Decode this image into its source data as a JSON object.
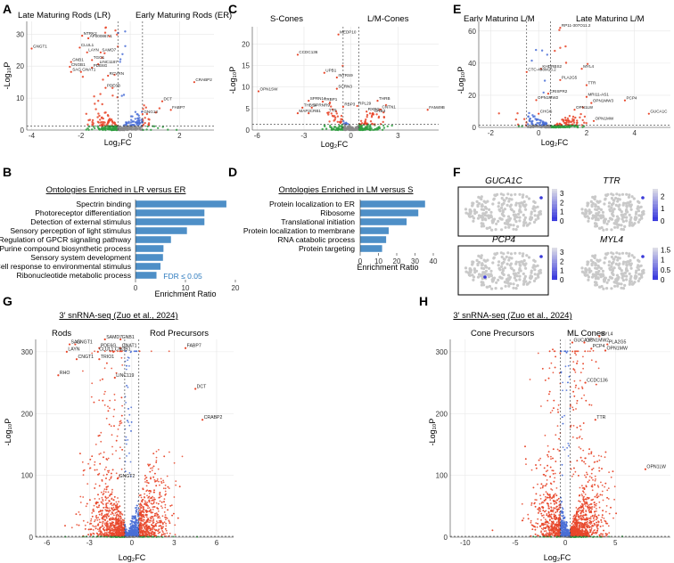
{
  "panel_letters": [
    "A",
    "B",
    "C",
    "D",
    "E",
    "F",
    "G",
    "H"
  ],
  "colors": {
    "sig": "#e8462a",
    "fc": "#2e9d3f",
    "p": "#4a6fd6",
    "ns": "#8a8a8a",
    "bar": "#4e8fc7",
    "grid": "#e6e6e6"
  },
  "chart_data": [
    {
      "id": "A",
      "type": "scatter",
      "subtype": "volcano",
      "group_left": "Late Maturing Rods (LR)",
      "group_right": "Early Maturing Rods (ER)",
      "xlabel": "Log₂FC",
      "ylabel": "-Log₁₀P",
      "xlim": [
        -4.2,
        3.4
      ],
      "ylim": [
        0,
        34
      ],
      "xticks": [
        -4,
        -2,
        0,
        2
      ],
      "yticks": [
        0,
        10,
        20,
        30
      ],
      "fc_threshold": [
        -0.5,
        0.5
      ],
      "p_threshold": 1.3,
      "labels": [
        {
          "t": "NTRK2",
          "x": -1.95,
          "y": 29.5
        },
        {
          "t": "AP000867.1",
          "x": -1.7,
          "y": 28.7
        },
        {
          "t": "GNGT1",
          "x": -4.0,
          "y": 25.5
        },
        {
          "t": "CLUL1",
          "x": -2.05,
          "y": 25.8
        },
        {
          "t": "LAYN",
          "x": -1.75,
          "y": 24.3
        },
        {
          "t": "SAMD7",
          "x": -1.2,
          "y": 24.3
        },
        {
          "t": "GNB1",
          "x": -2.4,
          "y": 21.3
        },
        {
          "t": "TGO1",
          "x": -1.55,
          "y": 21.9
        },
        {
          "t": "LINC1187",
          "x": -1.3,
          "y": 20.6
        },
        {
          "t": "CNGB1",
          "x": -2.45,
          "y": 19.8
        },
        {
          "t": "PDE6G",
          "x": -1.55,
          "y": 19.5
        },
        {
          "t": "SAG",
          "x": -2.4,
          "y": 18.2
        },
        {
          "t": "GNAT1",
          "x": -2.0,
          "y": 18.2
        },
        {
          "t": "RCVRN",
          "x": -0.9,
          "y": 17.0
        },
        {
          "t": "PDE6B",
          "x": -1.0,
          "y": 13.2
        },
        {
          "t": "CRABP2",
          "x": 2.6,
          "y": 15.0
        },
        {
          "t": "DCT",
          "x": 1.3,
          "y": 9.0
        },
        {
          "t": "FABP7",
          "x": 1.65,
          "y": 6.3
        },
        {
          "t": "GNG13",
          "x": 0.5,
          "y": 5.0
        }
      ]
    },
    {
      "id": "B",
      "type": "bar",
      "orientation": "horizontal",
      "title": "Ontologies Enriched in LR versus ER",
      "categories": [
        "Spectrin binding",
        "Photoreceptor differentiation",
        "Detection of external stimulus",
        "Sensory perception of light stimulus",
        "Regulation of GPCR signaling pathway",
        "Purine compound biosynthetic process",
        "Sensory system development",
        "Cell response to environmental stimulus",
        "Ribonucleotide metabolic process"
      ],
      "values": [
        18.2,
        13.8,
        13.8,
        10.3,
        7.1,
        5.6,
        5.5,
        5.0,
        4.2
      ],
      "xlabel": "Enrichment Ratio",
      "xlim": [
        0,
        20
      ],
      "xticks": [
        0,
        10,
        20
      ],
      "annotation": "FDR ≤ 0.05"
    },
    {
      "id": "C",
      "type": "scatter",
      "subtype": "volcano",
      "group_left": "S-Cones",
      "group_right": "L/M-Cones",
      "xlabel": "Log₂FC",
      "ylabel": "-Log₁₀P",
      "xlim": [
        -6.3,
        5.6
      ],
      "ylim": [
        0,
        24
      ],
      "xticks": [
        -6,
        -3,
        0,
        3
      ],
      "yticks": [
        0,
        5,
        10,
        15,
        20
      ],
      "fc_threshold": [
        -0.5,
        0.5
      ],
      "p_threshold": 1.3,
      "labels": [
        {
          "t": "MEDP10",
          "x": -0.8,
          "y": 22.2
        },
        {
          "t": "CCDC136",
          "x": -3.4,
          "y": 17.5
        },
        {
          "t": "UPB1",
          "x": -1.7,
          "y": 13.3
        },
        {
          "t": "INTRS9",
          "x": -0.9,
          "y": 12.2
        },
        {
          "t": "OPN1SW",
          "x": -5.9,
          "y": 9.0
        },
        {
          "t": "SCRN3",
          "x": -0.9,
          "y": 9.6
        },
        {
          "t": "SPRN14",
          "x": -2.7,
          "y": 6.8
        },
        {
          "t": "THRB",
          "x": 1.7,
          "y": 6.8
        },
        {
          "t": "TRBP1",
          "x": -1.8,
          "y": 6.6
        },
        {
          "t": "THBS4",
          "x": -3.1,
          "y": 5.2
        },
        {
          "t": "SPRNR9",
          "x": -2.5,
          "y": 5.2
        },
        {
          "t": "RBP3",
          "x": -0.5,
          "y": 5.4
        },
        {
          "t": "RPL29",
          "x": 0.4,
          "y": 5.6
        },
        {
          "t": "CNTN1",
          "x": 1.9,
          "y": 4.8
        },
        {
          "t": "FAM49B",
          "x": 4.9,
          "y": 4.7
        },
        {
          "t": "MAP2",
          "x": -3.4,
          "y": 3.9
        },
        {
          "t": "CRB1",
          "x": -2.7,
          "y": 3.9
        },
        {
          "t": "TTR",
          "x": -1.5,
          "y": 4.0
        },
        {
          "t": "RXRG",
          "x": 1.0,
          "y": 4.3
        },
        {
          "t": "GNB3",
          "x": 1.4,
          "y": 3.9
        }
      ]
    },
    {
      "id": "D",
      "type": "bar",
      "orientation": "horizontal",
      "title": "Ontologies Enriched in LM versus S",
      "categories": [
        "Protein localization to ER",
        "Ribosome",
        "Translational initiation",
        "Protein localization to membrane",
        "RNA catabolic process",
        "Protein targeting"
      ],
      "values": [
        35.5,
        31.8,
        25.4,
        15.6,
        14.2,
        12.0
      ],
      "xlabel": "Enrichment Ratio",
      "xlim": [
        0,
        40
      ],
      "xticks": [
        0,
        10,
        20,
        30,
        40
      ]
    },
    {
      "id": "E",
      "type": "scatter",
      "subtype": "volcano",
      "group_left": "Early Maturing L/M",
      "group_right": "Late Maturing L/M",
      "xlabel": "Log₂FC",
      "ylabel": "-Log₁₀P",
      "xlim": [
        -2.5,
        5.5
      ],
      "ylim": [
        0,
        66
      ],
      "xticks": [
        -2,
        0,
        2,
        4
      ],
      "yticks": [
        0,
        20,
        40,
        60
      ],
      "fc_threshold": [
        -0.5,
        0.5
      ],
      "p_threshold": 1.3,
      "labels": [
        {
          "t": "RP11-307O11.2",
          "x": 0.9,
          "y": 62.0
        },
        {
          "t": "KHDRBS2",
          "x": 0.1,
          "y": 36.5
        },
        {
          "t": "MYL4",
          "x": 1.8,
          "y": 36.5
        },
        {
          "t": "CTC-498M16.2",
          "x": -0.5,
          "y": 34.5
        },
        {
          "t": "PLA2G5",
          "x": 0.9,
          "y": 29.5
        },
        {
          "t": "TTR",
          "x": 2.0,
          "y": 26.3
        },
        {
          "t": "CRISPR2",
          "x": 0.4,
          "y": 21.0
        },
        {
          "t": "MRI11-AS1",
          "x": 2.0,
          "y": 19.0
        },
        {
          "t": "OPN1MW2",
          "x": -0.1,
          "y": 17.0
        },
        {
          "t": "OPN1MW3",
          "x": 2.2,
          "y": 15.2
        },
        {
          "t": "PCP4",
          "x": 3.6,
          "y": 16.8
        },
        {
          "t": "OPN1LW",
          "x": 1.5,
          "y": 11.0
        },
        {
          "t": "GUCA1C",
          "x": 4.6,
          "y": 8.5
        },
        {
          "t": "CHGG",
          "x": 0.0,
          "y": 8.5
        },
        {
          "t": "OPN1MW",
          "x": 2.3,
          "y": 4.0
        }
      ]
    },
    {
      "id": "F",
      "type": "scatter",
      "subtype": "tsne",
      "panels": [
        {
          "gene": "GUCA1C",
          "legend": [
            "3",
            "2",
            "1",
            "0"
          ],
          "lmax": 3.5,
          "highlight": true
        },
        {
          "gene": "TTR",
          "legend": [
            "2",
            "1",
            "0"
          ],
          "lmax": 2.6,
          "highlight": false
        },
        {
          "gene": "PCP4",
          "legend": [
            "3",
            "2",
            "1",
            "0"
          ],
          "lmax": 3.5,
          "highlight": true
        },
        {
          "gene": "MYL4",
          "legend": [
            "1.5",
            "1",
            "0.5",
            "0"
          ],
          "lmax": 1.6,
          "highlight": false
        }
      ]
    },
    {
      "id": "G",
      "type": "scatter",
      "subtype": "volcano",
      "title": "3′ snRNA-seq (Zuo et al., 2024)",
      "group_left": "Rods",
      "group_right": "Rod Precursors",
      "xlabel": "Log₂FC",
      "ylabel": "-Log₁₀P",
      "xlim": [
        -6.8,
        7.2
      ],
      "ylim": [
        0,
        320
      ],
      "xticks": [
        -6,
        -3,
        0,
        3,
        6
      ],
      "yticks": [
        0,
        100,
        200,
        300
      ],
      "fc_threshold": [
        -0.5,
        0.5
      ],
      "p_threshold": 1.3,
      "labels": [
        {
          "t": "SAMD7",
          "x": -1.9,
          "y": 320
        },
        {
          "t": "GNB1",
          "x": -0.8,
          "y": 320
        },
        {
          "t": "SAG",
          "x": -4.4,
          "y": 312
        },
        {
          "t": "GNGT1",
          "x": -4.0,
          "y": 312
        },
        {
          "t": "PDE6G",
          "x": -2.3,
          "y": 306
        },
        {
          "t": "GNAT1",
          "x": -0.8,
          "y": 306
        },
        {
          "t": "LAYN",
          "x": -4.6,
          "y": 300
        },
        {
          "t": "CLUL1",
          "x": -2.4,
          "y": 300
        },
        {
          "t": "CNGB1",
          "x": -1.3,
          "y": 300
        },
        {
          "t": "FABP7",
          "x": 3.8,
          "y": 306
        },
        {
          "t": "CNGT1",
          "x": -3.9,
          "y": 288
        },
        {
          "t": "TRIO1",
          "x": -2.3,
          "y": 288
        },
        {
          "t": "RHO",
          "x": -5.2,
          "y": 262
        },
        {
          "t": "LINC119",
          "x": -1.2,
          "y": 258
        },
        {
          "t": "DCT",
          "x": 4.5,
          "y": 240
        },
        {
          "t": "CRABP2",
          "x": 5.0,
          "y": 190
        },
        {
          "t": "GNGT2",
          "x": -1.0,
          "y": 95
        }
      ]
    },
    {
      "id": "H",
      "type": "scatter",
      "subtype": "volcano",
      "title": "3′ snRNA-seq (Zuo et al., 2024)",
      "group_left": "Cone Precursors",
      "group_right": "ML Cones",
      "xlabel": "Log₂FC",
      "ylabel": "-Log₁₀P",
      "xlim": [
        -11.5,
        10.5
      ],
      "ylim": [
        0,
        320
      ],
      "xticks": [
        -10,
        -5,
        0,
        5
      ],
      "yticks": [
        0,
        100,
        200,
        300
      ],
      "fc_threshold": [
        -0.5,
        0.5
      ],
      "p_threshold": 1.3,
      "labels": [
        {
          "t": "MYL4",
          "x": 3.4,
          "y": 325
        },
        {
          "t": "GUCA1C",
          "x": 0.7,
          "y": 315
        },
        {
          "t": "OPN1MW2",
          "x": 1.9,
          "y": 315
        },
        {
          "t": "PLA2G5",
          "x": 4.2,
          "y": 312
        },
        {
          "t": "PCP4",
          "x": 2.6,
          "y": 305
        },
        {
          "t": "OPN1MW",
          "x": 4.0,
          "y": 302
        },
        {
          "t": "CCDC136",
          "x": 2.0,
          "y": 250
        },
        {
          "t": "TTR",
          "x": 3.0,
          "y": 190
        },
        {
          "t": "OPN1LW",
          "x": 8.0,
          "y": 110
        }
      ]
    }
  ]
}
